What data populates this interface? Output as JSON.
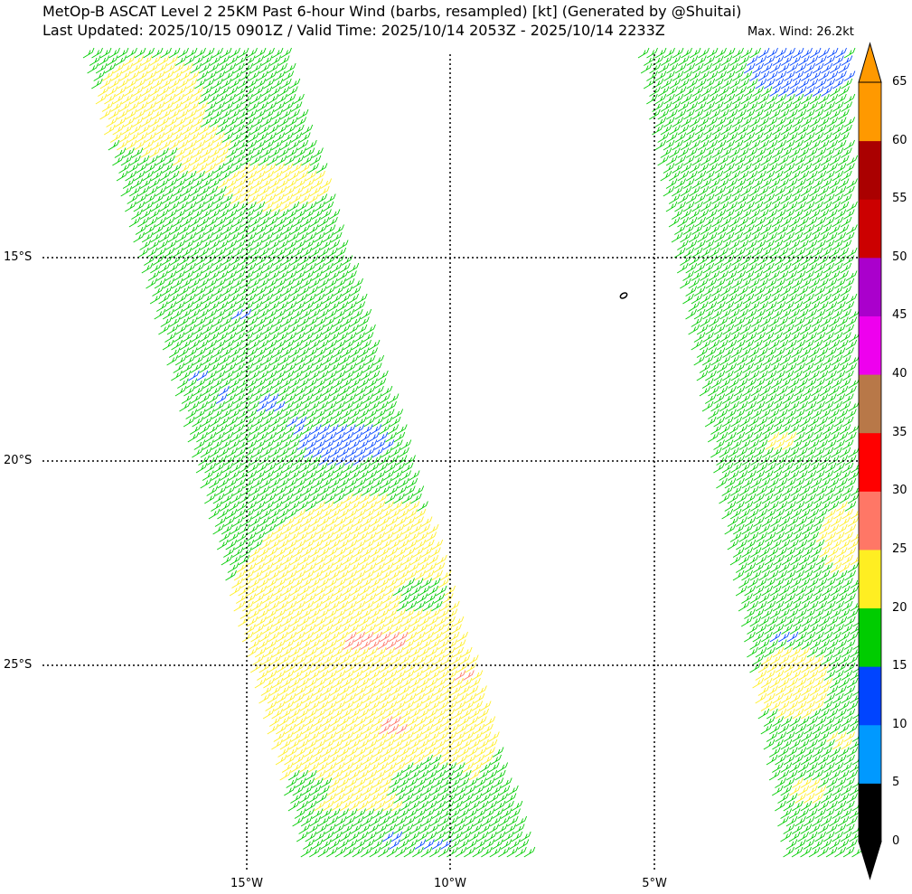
{
  "header": {
    "title_line1": "MetOp-B ASCAT Level 2 25KM Past 6-hour Wind (barbs, resampled) [kt] (Generated by @Shuitai)",
    "title_line2": "Last Updated: 2025/10/15 0901Z / Valid Time: 2025/10/14 2053Z - 2025/10/14 2233Z",
    "max_wind": "Max. Wind: 26.2kt"
  },
  "map": {
    "lat_labels": [
      "15°S",
      "20°S",
      "25°S"
    ],
    "lon_labels": [
      "15°W",
      "10°W",
      "5°W"
    ],
    "gridline_style": "dotted-black"
  },
  "colorbar": {
    "unit": "kt",
    "ticks": [
      "65",
      "60",
      "55",
      "50",
      "45",
      "40",
      "35",
      "30",
      "25",
      "20",
      "15",
      "10",
      "5",
      "0"
    ],
    "colors": [
      "#000000",
      "#0099ff",
      "#0044ff",
      "#00cc00",
      "#ffee22",
      "#ff7766",
      "#ff0000",
      "#b87848",
      "#ee00ee",
      "#aa00cc",
      "#cc0000",
      "#aa0000",
      "#ff9900"
    ]
  },
  "barb_colors": {
    "5-10": "#0044ff",
    "15-20": "#00cc00",
    "20-25": "#ffee22",
    "25-30": "#ff7766"
  }
}
